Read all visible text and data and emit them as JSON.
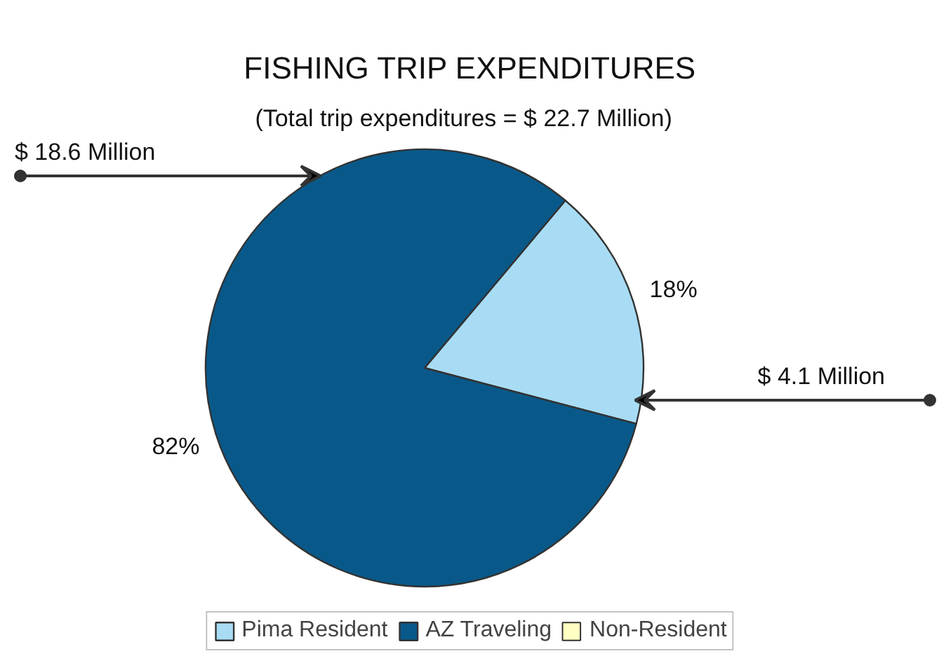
{
  "chart_data": {
    "type": "pie",
    "title": "FISHING TRIP EXPENDITURES",
    "subtitle": "(Total trip expenditures  =  $ 22.7 Million)",
    "categories": [
      "Pima Resident",
      "AZ Traveling",
      "Non-Resident"
    ],
    "values": [
      18,
      82,
      0
    ],
    "colors": [
      "#a8dcf4",
      "#08598a",
      "#ffffc4"
    ],
    "value_labels": [
      "18%",
      "82%",
      null
    ],
    "annotations": [
      "$ 18.6 Million",
      "$ 4.1 Million"
    ],
    "legend": "bottom"
  }
}
